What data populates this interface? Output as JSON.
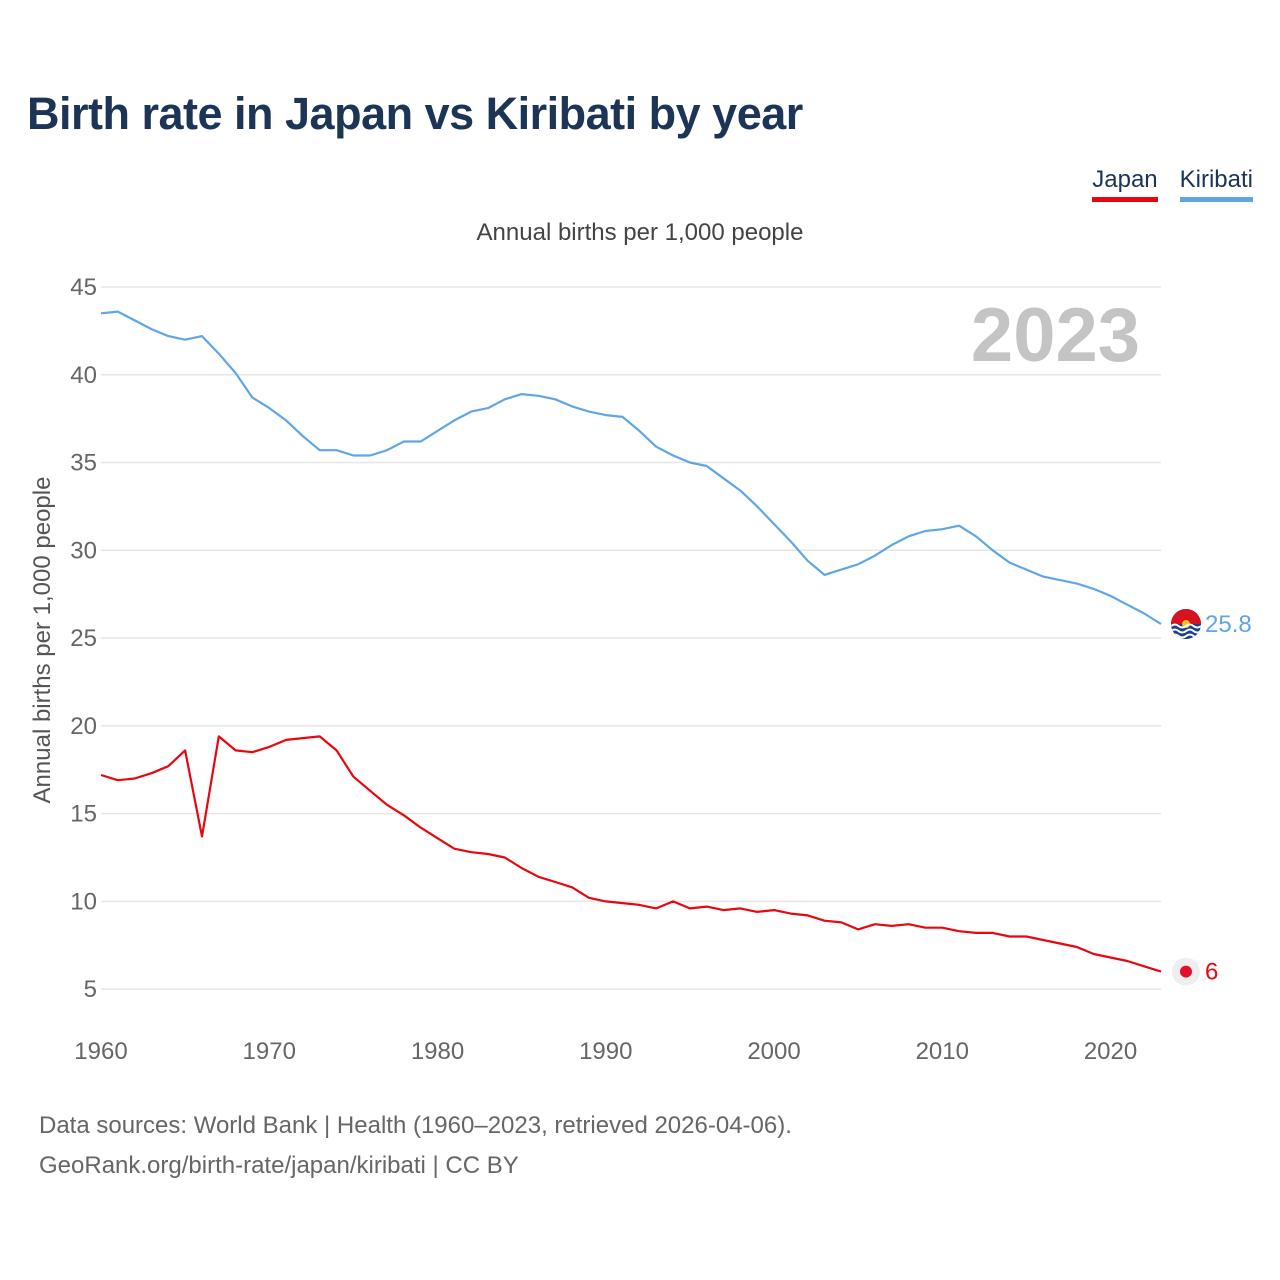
{
  "title": "Birth rate in Japan vs Kiribati by year",
  "legend": [
    {
      "name": "Japan",
      "color": "#e8060f"
    },
    {
      "name": "Kiribati",
      "color": "#5ea6e6"
    }
  ],
  "chart_data": {
    "type": "line",
    "subtitle": "Annual births per 1,000 people",
    "ylabel": "Annual births per 1,000 people",
    "xlabel": "",
    "year_label": "2023",
    "xlim": [
      1960,
      2023
    ],
    "ylim": [
      2.5,
      45
    ],
    "yticks": [
      5,
      10,
      15,
      20,
      25,
      30,
      35,
      40,
      45
    ],
    "xticks": [
      1960,
      1970,
      1980,
      1990,
      2000,
      2010,
      2020
    ],
    "grid": true,
    "x": [
      1960,
      1961,
      1962,
      1963,
      1964,
      1965,
      1966,
      1967,
      1968,
      1969,
      1970,
      1971,
      1972,
      1973,
      1974,
      1975,
      1976,
      1977,
      1978,
      1979,
      1980,
      1981,
      1982,
      1983,
      1984,
      1985,
      1986,
      1987,
      1988,
      1989,
      1990,
      1991,
      1992,
      1993,
      1994,
      1995,
      1996,
      1997,
      1998,
      1999,
      2000,
      2001,
      2002,
      2003,
      2004,
      2005,
      2006,
      2007,
      2008,
      2009,
      2010,
      2011,
      2012,
      2013,
      2014,
      2015,
      2016,
      2017,
      2018,
      2019,
      2020,
      2021,
      2022,
      2023
    ],
    "series": [
      {
        "name": "Japan",
        "color": "#e8060f",
        "end_label": "6",
        "values": [
          17.2,
          16.9,
          17.0,
          17.3,
          17.7,
          18.6,
          13.7,
          19.4,
          18.6,
          18.5,
          18.8,
          19.2,
          19.3,
          19.4,
          18.6,
          17.1,
          16.3,
          15.5,
          14.9,
          14.2,
          13.6,
          13.0,
          12.8,
          12.7,
          12.5,
          11.9,
          11.4,
          11.1,
          10.8,
          10.2,
          10.0,
          9.9,
          9.8,
          9.6,
          10.0,
          9.6,
          9.7,
          9.5,
          9.6,
          9.4,
          9.5,
          9.3,
          9.2,
          8.9,
          8.8,
          8.4,
          8.7,
          8.6,
          8.7,
          8.5,
          8.5,
          8.3,
          8.2,
          8.2,
          8.0,
          8.0,
          7.8,
          7.6,
          7.4,
          7.0,
          6.8,
          6.6,
          6.3,
          6.0
        ]
      },
      {
        "name": "Kiribati",
        "color": "#5ea6e6",
        "end_label": "25.8",
        "values": [
          43.5,
          43.6,
          43.1,
          42.6,
          42.2,
          42.0,
          42.2,
          41.2,
          40.1,
          38.7,
          38.1,
          37.4,
          36.5,
          35.7,
          35.7,
          35.4,
          35.4,
          35.7,
          36.2,
          36.2,
          36.8,
          37.4,
          37.9,
          38.1,
          38.6,
          38.9,
          38.8,
          38.6,
          38.2,
          37.9,
          37.7,
          37.6,
          36.8,
          35.9,
          35.4,
          35.0,
          34.8,
          34.1,
          33.4,
          32.5,
          31.5,
          30.5,
          29.4,
          28.6,
          28.9,
          29.2,
          29.7,
          30.3,
          30.8,
          31.1,
          31.2,
          31.4,
          30.8,
          30.0,
          29.3,
          28.9,
          28.5,
          28.3,
          28.1,
          27.8,
          27.4,
          26.9,
          26.4,
          25.8
        ]
      }
    ]
  },
  "footer": {
    "line1": "Data sources: World Bank | Health (1960–2023, retrieved 2026-04-06).",
    "line2": "GeoRank.org/birth-rate/japan/kiribati | CC BY"
  }
}
